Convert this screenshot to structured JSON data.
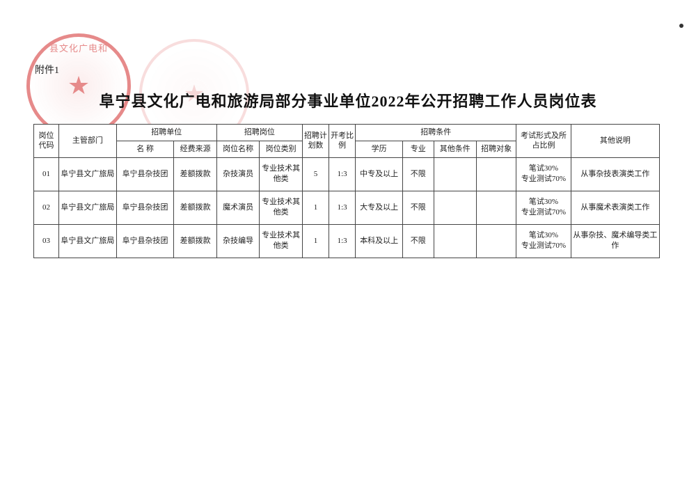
{
  "attachment_label": "附件1",
  "page_title": "阜宁县文化广电和旅游局部分事业单位2022年公开招聘工作人员岗位表",
  "stamp1_text": "县文化广电和",
  "table": {
    "type": "table",
    "background_color": "#ffffff",
    "border_color": "#444444",
    "text_color": "#222222",
    "font_size_pt": 8,
    "header_font_size_pt": 8,
    "headers": {
      "code": "岗位代码",
      "dept": "主管部门",
      "unit_group": "招聘单位",
      "unit_name": "名  称",
      "unit_fund": "经费来源",
      "post_group": "招聘岗位",
      "post_name": "岗位名称",
      "post_cat": "岗位类别",
      "plan": "招聘计划数",
      "ratio": "开考比例",
      "cond_group": "招聘条件",
      "edu": "学历",
      "major": "专业",
      "other_cond": "其他条件",
      "target": "招聘对象",
      "exam": "考试形式及所占比例",
      "notes": "其他说明"
    },
    "rows": [
      {
        "code": "01",
        "dept": "阜宁县文广旅局",
        "unit_name": "阜宁县杂技团",
        "unit_fund": "差额拨款",
        "post_name": "杂技演员",
        "post_cat": "专业技术其他类",
        "plan": "5",
        "ratio": "1:3",
        "edu": "中专及以上",
        "major": "不限",
        "other_cond": "",
        "target": "",
        "exam": "笔试30%\n专业测试70%",
        "notes": "从事杂技表演类工作"
      },
      {
        "code": "02",
        "dept": "阜宁县文广旅局",
        "unit_name": "阜宁县杂技团",
        "unit_fund": "差额拨款",
        "post_name": "魔术演员",
        "post_cat": "专业技术其他类",
        "plan": "1",
        "ratio": "1:3",
        "edu": "大专及以上",
        "major": "不限",
        "other_cond": "",
        "target": "",
        "exam": "笔试30%\n专业测试70%",
        "notes": "从事魔术表演类工作"
      },
      {
        "code": "03",
        "dept": "阜宁县文广旅局",
        "unit_name": "阜宁县杂技团",
        "unit_fund": "差额拨款",
        "post_name": "杂技编导",
        "post_cat": "专业技术其他类",
        "plan": "1",
        "ratio": "1:3",
        "edu": "本科及以上",
        "major": "不限",
        "other_cond": "",
        "target": "",
        "exam": "笔试30%\n专业测试70%",
        "notes": "从事杂技、魔术编导类工作"
      }
    ]
  }
}
